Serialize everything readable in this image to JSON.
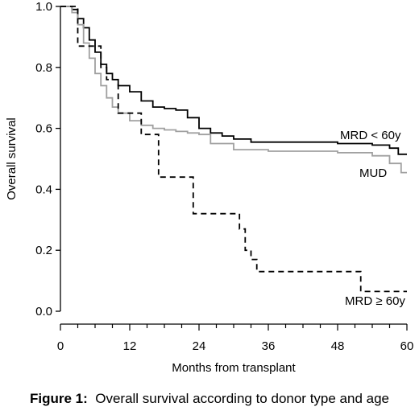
{
  "chart_data": {
    "type": "line",
    "title": "",
    "xlabel": "Months from transplant",
    "ylabel": "Overall survival",
    "xlim": [
      0,
      60
    ],
    "ylim": [
      0,
      1.0
    ],
    "x_ticks": [
      0,
      12,
      24,
      36,
      48,
      60
    ],
    "x_tick_labels": [
      "0",
      "12",
      "24",
      "36",
      "48",
      "60"
    ],
    "y_ticks": [
      0,
      0.2,
      0.4,
      0.6,
      0.8,
      1.0
    ],
    "y_tick_labels": [
      "0.0",
      "0.2",
      "0.4",
      "0.6",
      "0.8",
      "1.0"
    ],
    "grid": false,
    "legend": "inline labels at right end of curves",
    "series": [
      {
        "name": "MRD < 60y",
        "color": "#000000",
        "style": "solid",
        "x": [
          0,
          2,
          3,
          4,
          5,
          6,
          7,
          8,
          9,
          10,
          12,
          14,
          16,
          18,
          20,
          22,
          24,
          26,
          28,
          30,
          33,
          36,
          42,
          48,
          54,
          57,
          58.5,
          60
        ],
        "y": [
          1.0,
          0.99,
          0.96,
          0.93,
          0.89,
          0.85,
          0.81,
          0.78,
          0.76,
          0.74,
          0.72,
          0.69,
          0.67,
          0.665,
          0.66,
          0.635,
          0.6,
          0.585,
          0.575,
          0.565,
          0.555,
          0.555,
          0.555,
          0.55,
          0.545,
          0.535,
          0.515,
          0.515
        ]
      },
      {
        "name": "MUD",
        "color": "#a0a0a0",
        "style": "solid",
        "x": [
          0,
          2,
          3,
          4,
          5,
          6,
          7,
          8,
          9,
          10,
          12,
          14,
          16,
          18,
          20,
          22,
          24,
          26,
          30,
          36,
          48,
          54,
          57,
          59,
          60
        ],
        "y": [
          1.0,
          0.98,
          0.94,
          0.88,
          0.83,
          0.78,
          0.74,
          0.7,
          0.67,
          0.65,
          0.625,
          0.61,
          0.6,
          0.595,
          0.59,
          0.585,
          0.58,
          0.55,
          0.53,
          0.525,
          0.52,
          0.51,
          0.485,
          0.455,
          0.455
        ]
      },
      {
        "name": "MRD ≥ 60y",
        "color": "#000000",
        "style": "dashed",
        "x": [
          0,
          3,
          5,
          7,
          8,
          10,
          11,
          14,
          15,
          17,
          18,
          23,
          25,
          30,
          31,
          32,
          33,
          34,
          36,
          42,
          48,
          51,
          52,
          54,
          56,
          58,
          60
        ],
        "y": [
          1.0,
          0.87,
          0.87,
          0.8,
          0.76,
          0.65,
          0.65,
          0.58,
          0.58,
          0.44,
          0.44,
          0.32,
          0.32,
          0.32,
          0.27,
          0.2,
          0.17,
          0.13,
          0.13,
          0.13,
          0.13,
          0.13,
          0.065,
          0.065,
          0.065,
          0.065,
          0.065
        ]
      }
    ],
    "caption_label": "Figure 1:",
    "caption_text": "Overall survival according to donor type and age"
  }
}
